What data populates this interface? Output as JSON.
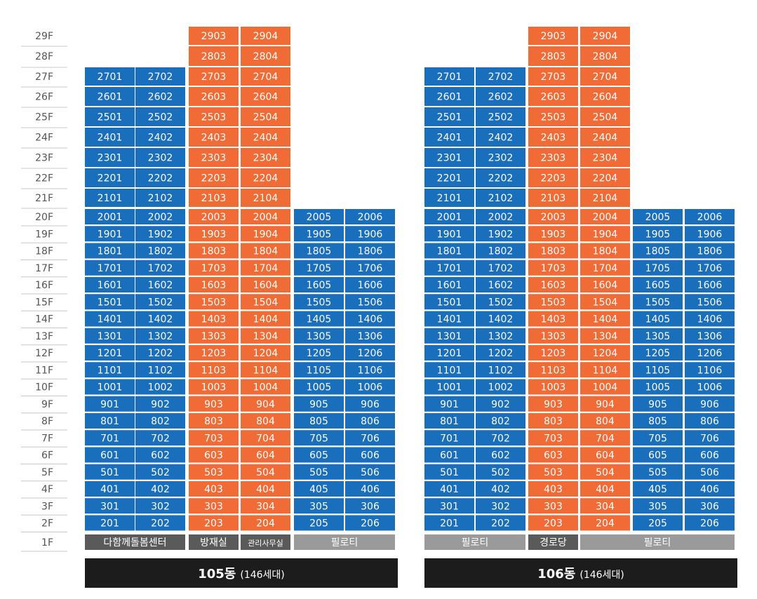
{
  "floors": [
    "29F",
    "28F",
    "27F",
    "26F",
    "25F",
    "24F",
    "23F",
    "22F",
    "21F",
    "20F",
    "19F",
    "18F",
    "17F",
    "16F",
    "15F",
    "14F",
    "13F",
    "12F",
    "11F",
    "10F",
    "9F",
    "8F",
    "7F",
    "6F",
    "5F",
    "4F",
    "3F",
    "2F",
    "1F"
  ],
  "colors": {
    "blue": "#1a6fbd",
    "orange": "#f06b35",
    "gray": "#9a9a9a",
    "dark_gray": "#5a5a5a",
    "black": "#1c1c1c"
  },
  "buildings": [
    {
      "name": "105동",
      "households": "(146세대)",
      "columns": [
        {
          "line": "01",
          "color": "blue",
          "top_floor": 27
        },
        {
          "line": "02",
          "color": "blue",
          "top_floor": 27
        },
        {
          "line": "03",
          "color": "orange",
          "top_floor": 29
        },
        {
          "line": "04",
          "color": "orange",
          "top_floor": 29
        },
        {
          "line": "05",
          "color": "blue",
          "top_floor": 20
        },
        {
          "line": "06",
          "color": "blue",
          "top_floor": 20
        }
      ],
      "ground": [
        {
          "label": "다함께돌봄센터",
          "span": 2,
          "color": "dark_gray",
          "size": "normal"
        },
        {
          "label": "방재실",
          "span": 1,
          "color": "dark_gray",
          "size": "normal"
        },
        {
          "label": "관리사무실",
          "span": 1,
          "color": "dark_gray",
          "size": "small"
        },
        {
          "label": "필로티",
          "span": 2,
          "color": "gray",
          "size": "normal"
        }
      ]
    },
    {
      "name": "106동",
      "households": "(146세대)",
      "columns": [
        {
          "line": "01",
          "color": "blue",
          "top_floor": 27
        },
        {
          "line": "02",
          "color": "blue",
          "top_floor": 27
        },
        {
          "line": "03",
          "color": "orange",
          "top_floor": 29
        },
        {
          "line": "04",
          "color": "orange",
          "top_floor": 29
        },
        {
          "line": "05",
          "color": "blue",
          "top_floor": 20
        },
        {
          "line": "06",
          "color": "blue",
          "top_floor": 20
        }
      ],
      "ground": [
        {
          "label": "필로티",
          "span": 2,
          "color": "gray",
          "size": "normal"
        },
        {
          "label": "경로당",
          "span": 1,
          "color": "dark_gray",
          "size": "normal"
        },
        {
          "label": "필로티",
          "span": 3,
          "color": "gray",
          "size": "normal"
        }
      ]
    }
  ]
}
